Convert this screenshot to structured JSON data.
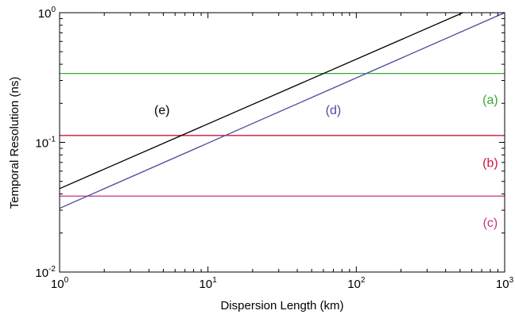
{
  "chart_data": {
    "type": "line",
    "xscale": "log",
    "yscale": "log",
    "xlim": [
      1,
      1000
    ],
    "ylim": [
      0.01,
      1
    ],
    "xlabel": "Dispersion Length (km)",
    "ylabel": "Temporal Resolution (ns)",
    "grid": false,
    "x_ticks": [
      {
        "base": "10",
        "exp": "0",
        "value": 1
      },
      {
        "base": "10",
        "exp": "1",
        "value": 10
      },
      {
        "base": "10",
        "exp": "2",
        "value": 100
      },
      {
        "base": "10",
        "exp": "3",
        "value": 1000
      }
    ],
    "y_ticks": [
      {
        "base": "10",
        "exp": "-2",
        "value": 0.01
      },
      {
        "base": "10",
        "exp": "-1",
        "value": 0.1
      },
      {
        "base": "10",
        "exp": "0",
        "value": 1
      }
    ],
    "series": [
      {
        "label": "(a)",
        "color": "#33aa33",
        "kind": "constant",
        "y": 0.34,
        "label_at": [
          800,
          0.198
        ]
      },
      {
        "label": "(b)",
        "color": "#d4153a",
        "kind": "constant",
        "y": 0.113,
        "label_at": [
          800,
          0.0647
        ]
      },
      {
        "label": "(c)",
        "color": "#c2338a",
        "kind": "constant",
        "y": 0.0385,
        "label_at": [
          800,
          0.0223
        ]
      },
      {
        "label": "(d)",
        "color": "#4b4b9c",
        "kind": "power",
        "x": [
          1,
          1000
        ],
        "y": [
          0.031,
          1.0
        ],
        "label_at": [
          70,
          0.165
        ]
      },
      {
        "label": "(e)",
        "color": "#000000",
        "kind": "power",
        "x": [
          1,
          523
        ],
        "y": [
          0.044,
          1.0
        ],
        "label_at": [
          4.9,
          0.165
        ]
      }
    ]
  }
}
